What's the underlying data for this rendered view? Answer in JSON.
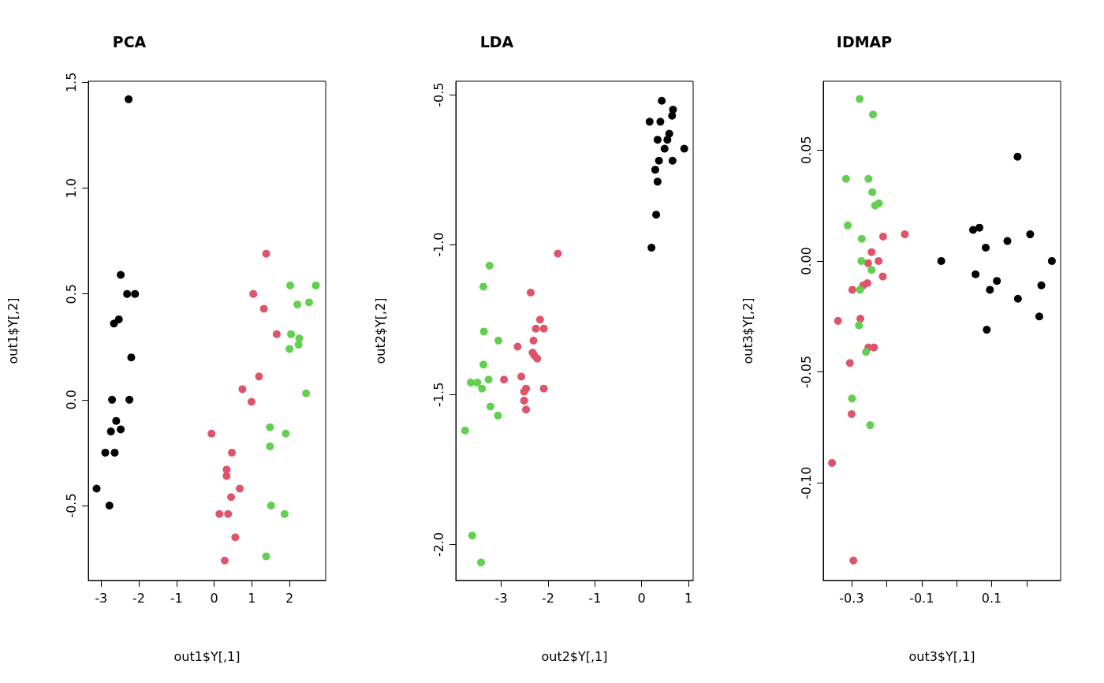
{
  "chart_data": [
    {
      "type": "scatter",
      "title": "PCA",
      "xlabel": "out1$Y[,1]",
      "ylabel": "out1$Y[,2]",
      "marker": "circle",
      "xlim": [
        -3.34,
        2.96
      ],
      "ylim": [
        -0.854,
        1.505
      ],
      "xticks": [
        -3,
        -2,
        -1,
        0,
        1,
        2
      ],
      "yticks": [
        {
          "value": -0.5,
          "label": "-0.5"
        },
        {
          "value": 0,
          "label": "0.0"
        },
        {
          "value": 0.5,
          "label": "0.5"
        },
        {
          "value": 1,
          "label": "1.0"
        },
        {
          "value": 1.5,
          "label": "1.5"
        }
      ],
      "series": [
        {
          "color": "#000000",
          "x": [
            -2.27,
            -2.48,
            -2.31,
            -2.1,
            -2.53,
            -2.66,
            -2.2,
            -2.71,
            -2.25,
            -2.6,
            -2.48,
            -2.74,
            -2.89,
            -2.64,
            -3.12,
            -2.78
          ],
          "values": [
            1.42,
            0.59,
            0.5,
            0.5,
            0.38,
            0.36,
            0.2,
            0.0,
            0.0,
            -0.1,
            -0.14,
            -0.15,
            -0.25,
            -0.25,
            -0.42,
            -0.5
          ]
        },
        {
          "color": "#df536b",
          "x": [
            1.38,
            1.04,
            1.32,
            1.66,
            1.19,
            0.75,
            0.99,
            -0.07,
            0.47,
            0.33,
            0.33,
            0.68,
            0.45,
            0.14,
            0.37,
            0.56,
            0.28
          ],
          "values": [
            0.69,
            0.5,
            0.43,
            0.31,
            0.11,
            0.05,
            -0.01,
            -0.16,
            -0.25,
            -0.33,
            -0.36,
            -0.42,
            -0.46,
            -0.54,
            -0.54,
            -0.65,
            -0.76
          ]
        },
        {
          "color": "#61d04f",
          "x": [
            2.02,
            2.7,
            2.21,
            2.52,
            2.04,
            2.26,
            2.24,
            2.0,
            2.44,
            1.48,
            1.9,
            1.48,
            1.51,
            1.87,
            1.38
          ],
          "values": [
            0.54,
            0.54,
            0.45,
            0.46,
            0.31,
            0.29,
            0.26,
            0.24,
            0.03,
            -0.13,
            -0.16,
            -0.22,
            -0.5,
            -0.54,
            -0.74
          ]
        }
      ]
    },
    {
      "type": "scatter",
      "title": "LDA",
      "xlabel": "out2$Y[,1]",
      "ylabel": "out2$Y[,2]",
      "marker": "circle",
      "xlim": [
        -3.97,
        1.1
      ],
      "ylim": [
        -2.12,
        -0.455
      ],
      "xticks": [
        -3,
        -2,
        -1,
        0,
        1
      ],
      "yticks": [
        {
          "value": -2,
          "label": "-2.0"
        },
        {
          "value": -1.5,
          "label": "-1.5"
        },
        {
          "value": -1,
          "label": "-1.0"
        },
        {
          "value": -0.5,
          "label": "-0.5"
        }
      ],
      "series": [
        {
          "color": "#000000",
          "x": [
            0.43,
            0.67,
            0.65,
            0.17,
            0.4,
            0.59,
            0.34,
            0.55,
            0.49,
            0.91,
            0.37,
            0.66,
            0.29,
            0.34,
            0.31,
            0.21
          ],
          "values": [
            -0.52,
            -0.55,
            -0.57,
            -0.59,
            -0.59,
            -0.63,
            -0.65,
            -0.65,
            -0.68,
            -0.68,
            -0.72,
            -0.72,
            -0.75,
            -0.79,
            -0.9,
            -1.01
          ]
        },
        {
          "color": "#df536b",
          "x": [
            -1.79,
            -2.37,
            -2.17,
            -2.09,
            -2.26,
            -2.31,
            -2.65,
            -2.33,
            -2.29,
            -2.23,
            -2.57,
            -2.94,
            -2.47,
            -2.09,
            -2.51,
            -2.51,
            -2.47
          ],
          "values": [
            -1.03,
            -1.16,
            -1.25,
            -1.28,
            -1.28,
            -1.32,
            -1.34,
            -1.36,
            -1.37,
            -1.38,
            -1.44,
            -1.45,
            -1.48,
            -1.48,
            -1.49,
            -1.52,
            -1.55
          ]
        },
        {
          "color": "#61d04f",
          "x": [
            -3.25,
            -3.38,
            -3.37,
            -3.06,
            -3.38,
            -3.27,
            -3.65,
            -3.51,
            -3.41,
            -3.23,
            -3.07,
            -3.77,
            -3.62,
            -3.43
          ],
          "values": [
            -1.07,
            -1.14,
            -1.29,
            -1.32,
            -1.4,
            -1.45,
            -1.46,
            -1.46,
            -1.48,
            -1.54,
            -1.57,
            -1.62,
            -1.97,
            -2.06
          ]
        }
      ]
    },
    {
      "type": "scatter",
      "title": "IDMAP",
      "xlabel": "out3$Y[,1]",
      "ylabel": "out3$Y[,2]",
      "marker": "circle",
      "xlim": [
        -0.381,
        0.297
      ],
      "ylim": [
        -0.144,
        0.081
      ],
      "xticks": [
        -0.3,
        {
          "value": -0.2,
          "label": null
        },
        -0.1,
        {
          "value": 0,
          "label": null
        },
        0.1,
        {
          "value": 0.2,
          "label": null
        }
      ],
      "yticks": [
        {
          "value": -0.1,
          "label": "-0.10"
        },
        {
          "value": -0.05,
          "label": "-0.05"
        },
        {
          "value": 0,
          "label": "0.00"
        },
        {
          "value": 0.05,
          "label": "0.05"
        }
      ],
      "series": [
        {
          "color": "#000000",
          "x": [
            0.174,
            0.047,
            0.065,
            0.21,
            0.083,
            0.145,
            -0.044,
            0.272,
            0.054,
            0.115,
            0.095,
            0.242,
            0.175,
            0.236,
            0.086
          ],
          "values": [
            0.047,
            0.014,
            0.015,
            0.012,
            0.006,
            0.009,
            0.0,
            0.0,
            -0.006,
            -0.009,
            -0.013,
            -0.011,
            -0.017,
            -0.025,
            -0.031
          ]
        },
        {
          "color": "#df536b",
          "x": [
            -0.148,
            -0.21,
            -0.243,
            -0.253,
            -0.223,
            -0.211,
            -0.255,
            -0.267,
            -0.298,
            -0.339,
            -0.275,
            -0.236,
            -0.252,
            -0.305,
            -0.3,
            -0.356,
            -0.295
          ],
          "values": [
            0.012,
            0.011,
            0.004,
            -0.001,
            0.0,
            -0.007,
            -0.01,
            -0.011,
            -0.013,
            -0.027,
            -0.026,
            -0.039,
            -0.039,
            -0.046,
            -0.069,
            -0.091,
            -0.135
          ]
        },
        {
          "color": "#61d04f",
          "x": [
            -0.277,
            -0.239,
            -0.316,
            -0.252,
            -0.241,
            -0.222,
            -0.233,
            -0.311,
            -0.271,
            -0.272,
            -0.243,
            -0.276,
            -0.279,
            -0.259,
            -0.299,
            -0.247
          ],
          "values": [
            0.073,
            0.066,
            0.037,
            0.037,
            0.031,
            0.026,
            0.025,
            0.016,
            0.01,
            0.0,
            -0.004,
            -0.013,
            -0.029,
            -0.041,
            -0.062,
            -0.074
          ]
        }
      ]
    }
  ]
}
